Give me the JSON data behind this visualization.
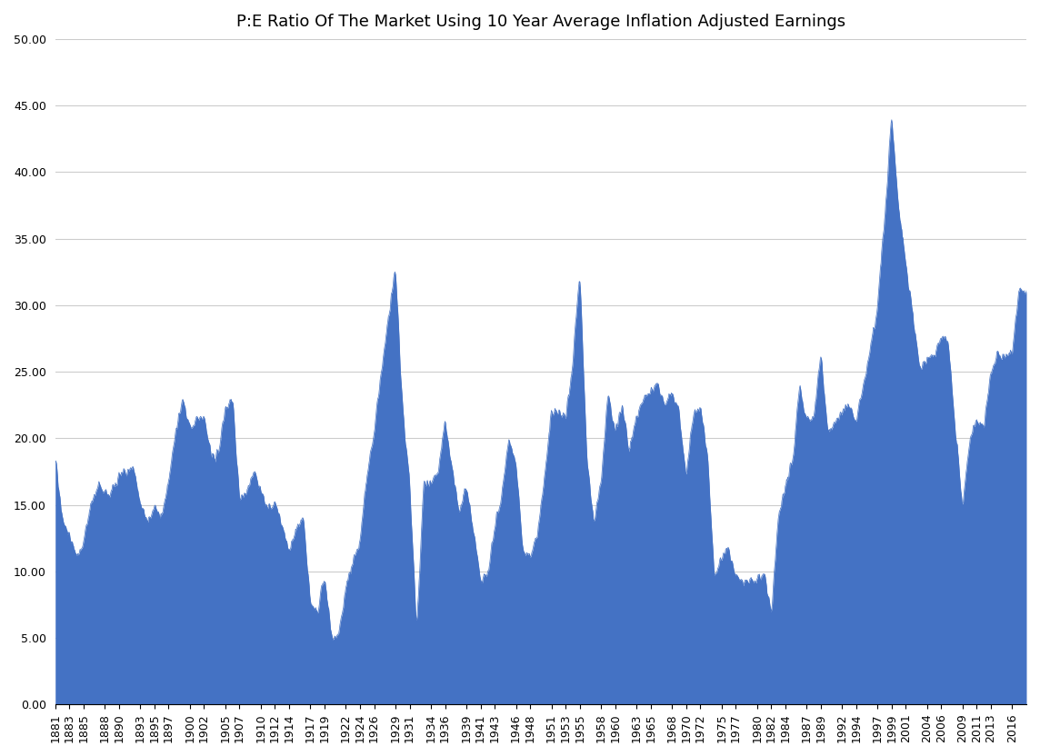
{
  "title": "P:E Ratio Of The Market Using 10 Year Average Inflation Adjusted Earnings",
  "fill_color": "#4472C4",
  "background_color": "#FFFFFF",
  "ylim": [
    0,
    50
  ],
  "yticks": [
    0.0,
    5.0,
    10.0,
    15.0,
    20.0,
    25.0,
    30.0,
    35.0,
    40.0,
    45.0,
    50.0
  ],
  "title_fontsize": 13,
  "tick_fontsize": 9,
  "figsize": [
    11.44,
    8.32
  ],
  "dpi": 100
}
